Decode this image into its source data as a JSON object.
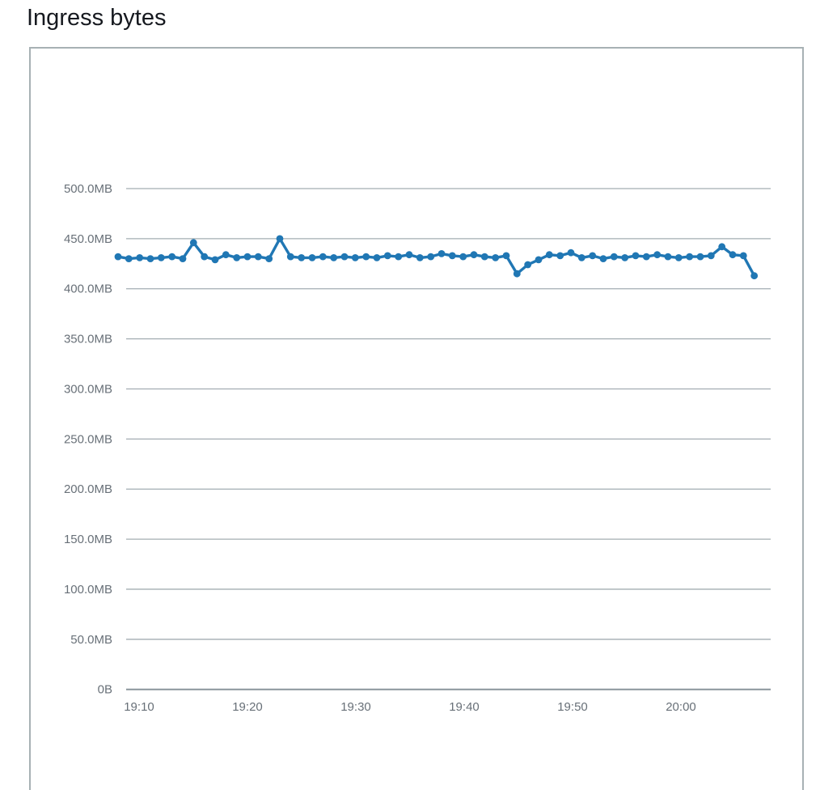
{
  "page": {
    "title": "Ingress bytes"
  },
  "colors": {
    "line": "#2077b4",
    "grid": "#a3adb2",
    "zero_axis": "#8a959b",
    "tick_text": "#687078",
    "title_text": "#16191f",
    "card_border": "#a7b1b4"
  },
  "chart_data": {
    "type": "line",
    "title": "Ingress bytes",
    "unit": "bytes",
    "grid": true,
    "legend_position": "none",
    "xlabel": "",
    "ylabel": "",
    "y_axis": {
      "range_mb": [
        0,
        500
      ],
      "tick_step_mb": 50,
      "ticks": [
        {
          "label": "0B",
          "value": 0
        },
        {
          "label": "50.0MB",
          "value": 50
        },
        {
          "label": "100.0MB",
          "value": 100
        },
        {
          "label": "150.0MB",
          "value": 150
        },
        {
          "label": "200.0MB",
          "value": 200
        },
        {
          "label": "250.0MB",
          "value": 250
        },
        {
          "label": "300.0MB",
          "value": 300
        },
        {
          "label": "350.0MB",
          "value": 350
        },
        {
          "label": "400.0MB",
          "value": 400
        },
        {
          "label": "450.0MB",
          "value": 450
        },
        {
          "label": "500.0MB",
          "value": 500
        }
      ]
    },
    "x_axis": {
      "ticks": [
        {
          "label": "19:10",
          "minutes": 0
        },
        {
          "label": "19:20",
          "minutes": 10
        },
        {
          "label": "19:30",
          "minutes": 20
        },
        {
          "label": "19:40",
          "minutes": 30
        },
        {
          "label": "19:50",
          "minutes": 40
        },
        {
          "label": "20:00",
          "minutes": 50
        }
      ]
    },
    "series": [
      {
        "name": "Ingress bytes",
        "color": "#2077b4",
        "point_interval_minutes": 1,
        "times": [
          "19:08",
          "19:09",
          "19:10",
          "19:11",
          "19:12",
          "19:13",
          "19:14",
          "19:15",
          "19:16",
          "19:17",
          "19:18",
          "19:19",
          "19:20",
          "19:21",
          "19:22",
          "19:23",
          "19:24",
          "19:25",
          "19:26",
          "19:27",
          "19:28",
          "19:29",
          "19:30",
          "19:31",
          "19:32",
          "19:33",
          "19:34",
          "19:35",
          "19:36",
          "19:37",
          "19:38",
          "19:39",
          "19:40",
          "19:41",
          "19:42",
          "19:43",
          "19:44",
          "19:45",
          "19:46",
          "19:47",
          "19:48",
          "19:49",
          "19:50",
          "19:51",
          "19:52",
          "19:53",
          "19:54",
          "19:55",
          "19:56",
          "19:57",
          "19:58",
          "19:59",
          "20:00",
          "20:01",
          "20:02",
          "20:03",
          "20:04",
          "20:05",
          "20:06",
          "20:07"
        ],
        "values_mb": [
          432,
          430,
          431,
          430,
          431,
          432,
          430,
          446,
          432,
          429,
          434,
          431,
          432,
          432,
          430,
          450,
          432,
          431,
          431,
          432,
          431,
          432,
          431,
          432,
          431,
          433,
          432,
          434,
          431,
          432,
          435,
          433,
          432,
          434,
          432,
          431,
          433,
          415,
          424,
          429,
          434,
          433,
          436,
          431,
          433,
          430,
          432,
          431,
          433,
          432,
          434,
          432,
          431,
          432,
          432,
          433,
          442,
          434,
          433,
          413
        ]
      }
    ]
  }
}
